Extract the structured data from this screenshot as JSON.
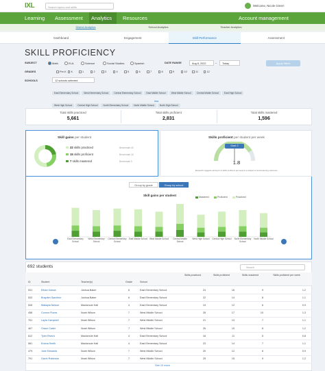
{
  "header": {
    "logo": "IXL",
    "search": "Search topics and skills",
    "welcome": "Welcome, Nicole Greer!"
  },
  "nav": {
    "items": [
      "Learning",
      "Assessment",
      "Analytics",
      "Resources"
    ],
    "account": "Account management"
  },
  "subnav": [
    "District Analytics",
    "School Analytics",
    "Teacher Analytics"
  ],
  "tabs": [
    "Dashboard",
    "Engagement",
    "Skill Performance",
    "Assessment"
  ],
  "title": "SKILL PROFICIENCY",
  "filters": {
    "subject_label": "SUBJECT",
    "subjects": [
      "Math",
      "ELA",
      "Science",
      "Social Studies",
      "Spanish"
    ],
    "date_label": "DATE RANGE",
    "date_from": "Aug 8, 2022",
    "date_sep": "–",
    "date_to": "Today",
    "grades_label": "GRADES",
    "grades": [
      "Pre-K",
      "K",
      "1",
      "2",
      "3",
      "4",
      "5",
      "6",
      "7",
      "8",
      "9",
      "10",
      "11",
      "12"
    ],
    "apply": "Apply filters",
    "schools_label": "SCHOOLS",
    "schools_selected": "12 schools selected",
    "school_chips": [
      "East Elementary School",
      "West Elementary School",
      "Central Elementary School",
      "East Middle School",
      "West Middle School",
      "Central Middle School",
      "East High School",
      "West High School",
      "Central High School",
      "North Elementary School",
      "North Middle School",
      "North High School"
    ],
    "less": "less"
  },
  "stats": [
    {
      "label": "Total skills practiced",
      "value": "5,661"
    },
    {
      "label": "Total skills proficient",
      "value": "2,831"
    },
    {
      "label": "Total skills mastered",
      "value": "1,596"
    }
  ],
  "skill_gains": {
    "title": "Skill gains",
    "title_suffix": "per student",
    "items": [
      {
        "value": 32,
        "label": "skills practiced",
        "benchmark": "Benchmark 40"
      },
      {
        "value": 15,
        "label": "skills proficient",
        "benchmark": "Benchmark 18"
      },
      {
        "value": 7,
        "label": "skills mastered",
        "benchmark": "Benchmark 9"
      }
    ]
  },
  "weekly": {
    "title": "Skills proficient",
    "title_suffix": "per student per week",
    "goal": "Goal: 2",
    "value": 1.8,
    "note": "Research suggests aiming for 2 skills proficient per week in a subject to boost learning outcomes."
  },
  "group_toggle": [
    "Group by grade",
    "Group by school"
  ],
  "chart_data": {
    "type": "bar",
    "stacked": true,
    "title": "Skill gains per student",
    "categories": [
      "East Elementary School",
      "West Elementary School",
      "Central Elementary School",
      "East Middle School",
      "West Middle School",
      "Central Middle School",
      "West High School",
      "Central High School",
      "North Elementary School",
      "North Middle School"
    ],
    "series": [
      {
        "name": "Mastered",
        "color": "#4f9e33",
        "values": [
          8,
          7,
          8,
          7,
          7,
          9,
          6,
          7,
          7,
          6
        ]
      },
      {
        "name": "Proficient",
        "color": "#86cf63",
        "values": [
          7,
          7,
          7,
          7,
          6,
          8,
          6,
          6,
          7,
          6
        ]
      },
      {
        "name": "Practiced",
        "color": "#d3efbf",
        "values": [
          23,
          21,
          22,
          22,
          20,
          26,
          17,
          20,
          21,
          19
        ]
      }
    ]
  },
  "table": {
    "count": "692 students",
    "search": "Search",
    "columns": [
      "ID",
      "Student",
      "Teacher(s)",
      "Grade",
      "School",
      "Skills practiced",
      "Skills proficient",
      "Skills mastered",
      "Skills proficient per week"
    ],
    "rows": [
      [
        531,
        "Ethan Garcia",
        "Joshua Baker",
        6,
        "East Elementary School",
        24,
        16,
        9,
        1.2
      ],
      [
        533,
        "Brayden Sanchez",
        "Joshua Baker",
        6,
        "East Elementary School",
        22,
        14,
        8,
        1.1
      ],
      [
        526,
        "Makayla Nelson",
        "Mackenzie Hall",
        4,
        "East Elementary School",
        19,
        12,
        6,
        0.9
      ],
      [
        458,
        "Connor Flores",
        "Noah Wilson",
        7,
        "West Middle School",
        28,
        17,
        10,
        1.3
      ],
      [
        761,
        "Layla Campbell",
        "Noah Wilson",
        7,
        "West Middle School",
        21,
        13,
        7,
        1.1
      ],
      [
        467,
        "Grace Carter",
        "Noah Wilson",
        7,
        "West Middle School",
        26,
        15,
        8,
        1.2
      ],
      [
        612,
        "Tyler Rivera",
        "Mackenzie Hall",
        4,
        "East Elementary School",
        18,
        11,
        5,
        0.8
      ],
      [
        581,
        "Emma Smith",
        "Mackenzie Hall",
        4,
        "East Elementary School",
        23,
        14,
        7,
        1.1
      ],
      [
        479,
        "Jose Edwards",
        "Noah Wilson",
        7,
        "West Middle School",
        20,
        12,
        6,
        0.9
      ],
      [
        791,
        "Gavin Robinson",
        "Noah Wilson",
        7,
        "West Middle School",
        25,
        15,
        9,
        1.2
      ]
    ],
    "more": "See 10 more"
  }
}
